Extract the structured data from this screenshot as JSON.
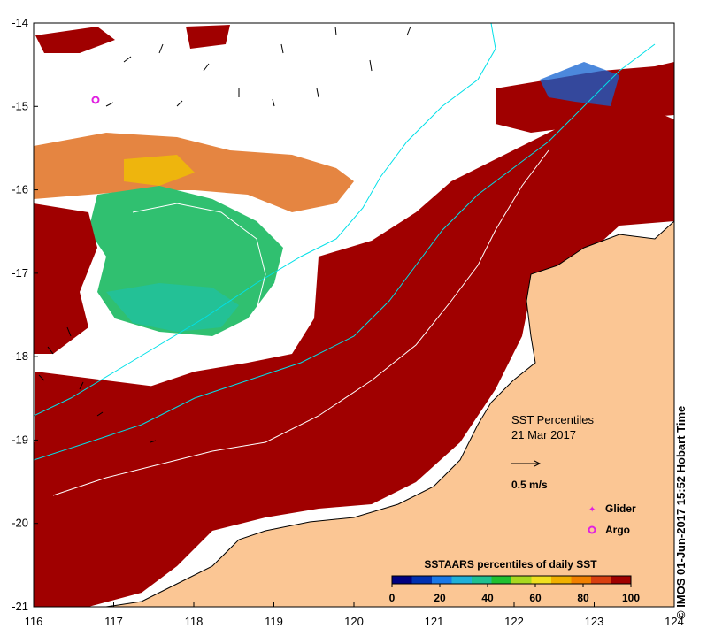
{
  "map": {
    "title": "SST Percentiles",
    "date": "21 Mar 2017",
    "credit": "© IMOS 01-Jun-2017 15:52 Hobart Time",
    "lon_ticks": [
      "116",
      "117",
      "118",
      "119",
      "120",
      "121",
      "122",
      "123",
      "124"
    ],
    "lat_ticks": [
      "-14",
      "-15",
      "-16",
      "-17",
      "-18",
      "-19",
      "-20",
      "-21"
    ],
    "lon_range": [
      116,
      124
    ],
    "lat_range": [
      -21,
      -14
    ],
    "vector_scale_label": "0.5 m/s",
    "markers": [
      {
        "label": "Glider",
        "color": "#e020e0"
      },
      {
        "label": "Argo",
        "color": "#e020e0"
      }
    ],
    "argo_positions": [
      {
        "lon": 116.8,
        "lat": -14.93
      }
    ],
    "land_color": "#fbc694",
    "colorbar": {
      "title": "SSTAARS percentiles of daily SST",
      "ticks": [
        "0",
        "20",
        "40",
        "60",
        "80",
        "100"
      ],
      "colors": [
        "#000080",
        "#0030b0",
        "#1878e8",
        "#20b0d8",
        "#20c090",
        "#20c030",
        "#a8d820",
        "#f0e020",
        "#f0b000",
        "#f08000",
        "#d84010",
        "#a00000"
      ]
    }
  }
}
